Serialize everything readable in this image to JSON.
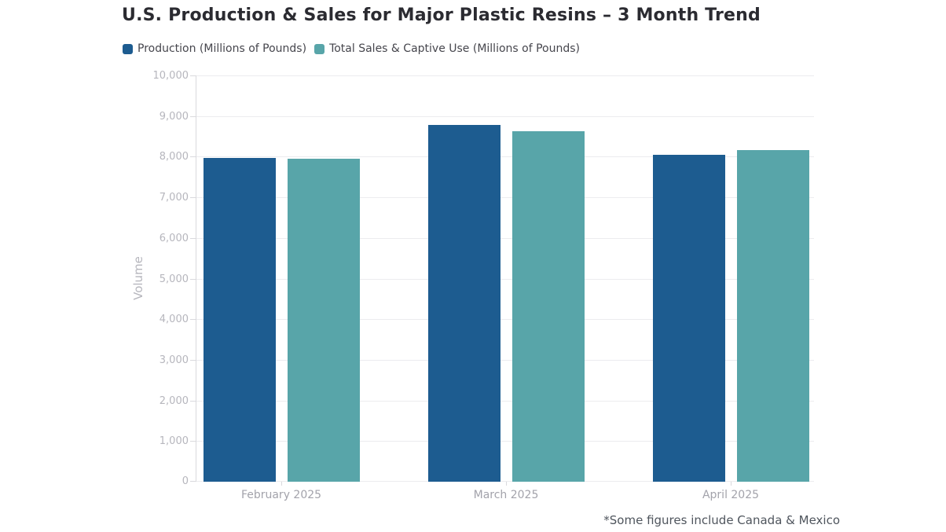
{
  "page": {
    "title": "U.S. Production & Sales for Major Plastic Resins – 3 Month Trend",
    "footnote": "*Some figures include Canada & Mexico"
  },
  "chart_data": {
    "type": "bar",
    "title": "U.S. Production & Sales for Major Plastic Resins – 3 Month Trend",
    "categories": [
      "February 2025",
      "March 2025",
      "April 2025"
    ],
    "series": [
      {
        "key": "production",
        "name": "Production (Millions of Pounds)",
        "color": "#1d5c90",
        "values": [
          7970,
          8780,
          8050
        ]
      },
      {
        "key": "sales",
        "name": "Total Sales & Captive Use (Millions of Pounds)",
        "color": "#58a5a9",
        "values": [
          7950,
          8630,
          8160
        ]
      }
    ],
    "xlabel": "",
    "ylabel": "Volume",
    "ylim": [
      0,
      10000
    ],
    "ytick_step": 1000,
    "grid": true,
    "legend_position": "top",
    "annotations": [
      "*Some figures include Canada & Mexico"
    ]
  }
}
